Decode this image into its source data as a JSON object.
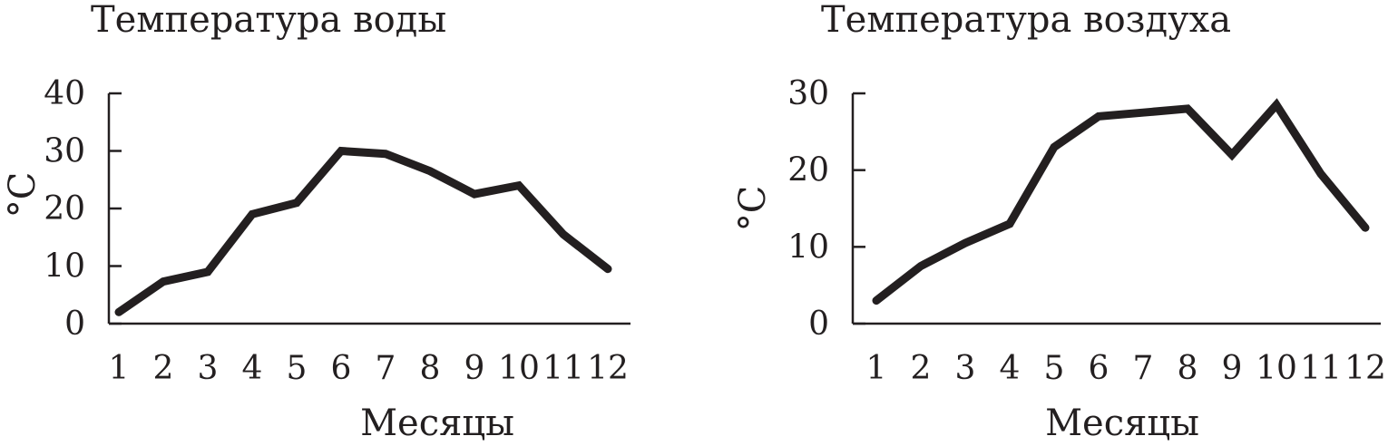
{
  "chart_data": [
    {
      "type": "line",
      "title": "Температура воды",
      "xlabel": "Месяцы",
      "ylabel": "°C",
      "x": [
        1,
        2,
        3,
        4,
        5,
        6,
        7,
        8,
        9,
        10,
        11,
        12
      ],
      "values": [
        2,
        7.3,
        9,
        19,
        21,
        30,
        29.5,
        26.5,
        22.5,
        24,
        15.5,
        9.5
      ],
      "ylim": [
        0,
        40
      ],
      "yticks": [
        0,
        10,
        20,
        30,
        40
      ],
      "grid": false,
      "line_color": "#231f20"
    },
    {
      "type": "line",
      "title": "Температура воздуха",
      "xlabel": "Месяцы",
      "ylabel": "°C",
      "x": [
        1,
        2,
        3,
        4,
        5,
        6,
        7,
        8,
        9,
        10,
        11,
        12
      ],
      "values": [
        3,
        7.5,
        10.5,
        13,
        23,
        27,
        27.5,
        28,
        22,
        28.5,
        19.5,
        12.5
      ],
      "ylim": [
        0,
        30
      ],
      "yticks": [
        0,
        10,
        20,
        30
      ],
      "grid": false,
      "line_color": "#231f20"
    }
  ]
}
